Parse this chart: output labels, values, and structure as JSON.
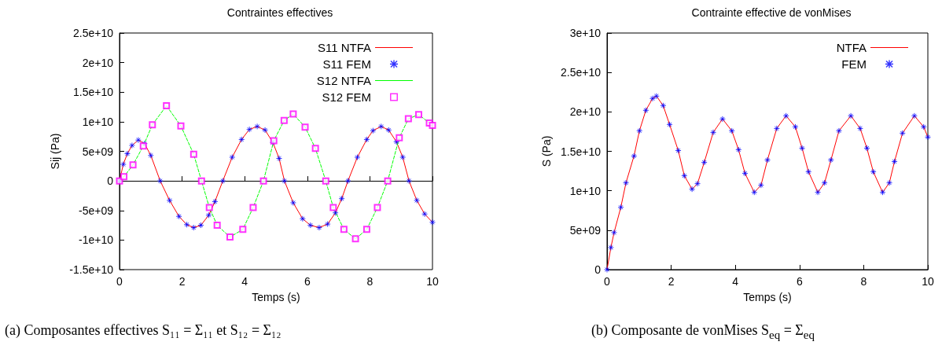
{
  "chart_data": [
    {
      "type": "line",
      "title": "Contraintes effectives",
      "xlabel": "Temps (s)",
      "ylabel": "Sij (Pa)",
      "xlim": [
        0,
        10
      ],
      "xticks": [
        0,
        2,
        4,
        6,
        8,
        10
      ],
      "ylim": [
        -15000000000.0,
        25000000000.0
      ],
      "yticks": [
        {
          "value": -15000000000.0,
          "label": "-1.5e+10"
        },
        {
          "value": -10000000000.0,
          "label": "-1e+10"
        },
        {
          "value": -5000000000.0,
          "label": "-5e+09"
        },
        0,
        {
          "value": 5000000000.0,
          "label": "5e+09"
        },
        {
          "value": 10000000000.0,
          "label": "1e+10"
        },
        {
          "value": 15000000000.0,
          "label": "1.5e+10"
        },
        {
          "value": 20000000000.0,
          "label": "2e+10"
        },
        {
          "value": 25000000000.0,
          "label": "2.5e+10"
        }
      ],
      "legend": "top right",
      "annotations": [
        "(a) Composantes effectives S₁₁ = Σ₁₁ et S₁₂ = Σ₁₂"
      ],
      "series": [
        {
          "name": "S11 NTFA",
          "type": "line",
          "color": "#ff0000",
          "line_style": "solid",
          "x": [
            0,
            0.12,
            0.25,
            0.4,
            0.6,
            0.8,
            1.0,
            1.3,
            1.6,
            1.9,
            2.15,
            2.37,
            2.6,
            2.85,
            3.05,
            3.3,
            3.6,
            3.9,
            4.15,
            4.4,
            4.65,
            4.9,
            5.1,
            5.27,
            5.55,
            5.85,
            6.1,
            6.38,
            6.65,
            6.9,
            7.1,
            7.3,
            7.6,
            7.9,
            8.1,
            8.36,
            8.6,
            8.85,
            9.05,
            9.25,
            9.5,
            9.75,
            10
          ],
          "values": [
            0,
            2800000000.0,
            4600000000.0,
            6000000000.0,
            6900000000.0,
            6300000000.0,
            4300000000.0,
            0,
            -3300000000.0,
            -6000000000.0,
            -7400000000.0,
            -7900000000.0,
            -7500000000.0,
            -5800000000.0,
            -3500000000.0,
            0,
            4000000000.0,
            7000000000.0,
            8700000000.0,
            9200000000.0,
            8600000000.0,
            6500000000.0,
            3800000000.0,
            0,
            -3700000000.0,
            -6400000000.0,
            -7500000000.0,
            -7900000000.0,
            -7300000000.0,
            -5400000000.0,
            -3000000000.0,
            0,
            4000000000.0,
            7000000000.0,
            8500000000.0,
            9200000000.0,
            8600000000.0,
            6600000000.0,
            4000000000.0,
            0,
            -3300000000.0,
            -5600000000.0,
            -7000000000.0
          ]
        },
        {
          "name": "S11 FEM",
          "type": "scatter",
          "color": "#0000ff",
          "marker": "cross",
          "x": [
            0,
            0.12,
            0.25,
            0.4,
            0.6,
            0.8,
            1.0,
            1.3,
            1.6,
            1.9,
            2.15,
            2.37,
            2.6,
            2.85,
            3.05,
            3.3,
            3.6,
            3.9,
            4.15,
            4.4,
            4.65,
            4.9,
            5.1,
            5.27,
            5.55,
            5.85,
            6.1,
            6.38,
            6.65,
            6.9,
            7.1,
            7.3,
            7.6,
            7.9,
            8.1,
            8.36,
            8.6,
            8.85,
            9.05,
            9.25,
            9.5,
            9.75,
            10
          ],
          "values": [
            0,
            2800000000.0,
            4600000000.0,
            6000000000.0,
            6900000000.0,
            6300000000.0,
            4300000000.0,
            0,
            -3300000000.0,
            -6000000000.0,
            -7400000000.0,
            -7900000000.0,
            -7500000000.0,
            -5800000000.0,
            -3500000000.0,
            0,
            4000000000.0,
            7000000000.0,
            8700000000.0,
            9200000000.0,
            8600000000.0,
            6500000000.0,
            3800000000.0,
            0,
            -3700000000.0,
            -6400000000.0,
            -7500000000.0,
            -7900000000.0,
            -7300000000.0,
            -5400000000.0,
            -3000000000.0,
            0,
            4000000000.0,
            7000000000.0,
            8500000000.0,
            9200000000.0,
            8600000000.0,
            6600000000.0,
            4000000000.0,
            0,
            -3300000000.0,
            -5600000000.0,
            -7000000000.0
          ]
        },
        {
          "name": "S12 NTFA",
          "type": "line",
          "color": "#00ff00",
          "line_style": "dashed",
          "x": [
            0,
            0.14,
            0.43,
            0.76,
            1.05,
            1.5,
            1.96,
            2.37,
            2.62,
            2.87,
            3.12,
            3.53,
            3.94,
            4.27,
            4.6,
            4.93,
            5.26,
            5.55,
            5.93,
            6.26,
            6.59,
            6.83,
            7.17,
            7.54,
            7.9,
            8.24,
            8.57,
            8.94,
            9.23,
            9.56,
            9.9,
            10
          ],
          "values": [
            0,
            700000000.0,
            2700000000.0,
            5900000000.0,
            9500000000.0,
            12700000000.0,
            9300000000.0,
            4500000000.0,
            0,
            -4500000000.0,
            -7500000000.0,
            -9500000000.0,
            -8200000000.0,
            -4500000000.0,
            0,
            6800000000.0,
            10200000000.0,
            11300000000.0,
            9100000000.0,
            5500000000.0,
            0,
            -4500000000.0,
            -8200000000.0,
            -9800000000.0,
            -8200000000.0,
            -4500000000.0,
            0,
            7300000000.0,
            10500000000.0,
            11200000000.0,
            9800000000.0,
            9400000000.0
          ]
        },
        {
          "name": "S12 FEM",
          "type": "scatter",
          "color": "#ff00ff",
          "marker": "square",
          "x": [
            0,
            0.14,
            0.43,
            0.76,
            1.05,
            1.5,
            1.96,
            2.37,
            2.62,
            2.87,
            3.12,
            3.53,
            3.94,
            4.27,
            4.6,
            4.93,
            5.26,
            5.55,
            5.93,
            6.26,
            6.59,
            6.83,
            7.17,
            7.54,
            7.9,
            8.24,
            8.57,
            8.94,
            9.23,
            9.56,
            9.9,
            10
          ],
          "values": [
            0,
            700000000.0,
            2700000000.0,
            5900000000.0,
            9500000000.0,
            12700000000.0,
            9300000000.0,
            4500000000.0,
            0,
            -4500000000.0,
            -7500000000.0,
            -9500000000.0,
            -8200000000.0,
            -4500000000.0,
            0,
            6800000000.0,
            10200000000.0,
            11300000000.0,
            9100000000.0,
            5500000000.0,
            0,
            -4500000000.0,
            -8200000000.0,
            -9800000000.0,
            -8200000000.0,
            -4500000000.0,
            0,
            7300000000.0,
            10500000000.0,
            11200000000.0,
            9800000000.0,
            9400000000.0
          ]
        }
      ]
    },
    {
      "type": "line",
      "title": "Contrainte effective de vonMises",
      "xlabel": "Temps (s)",
      "ylabel": "S (Pa)",
      "xlim": [
        0,
        10
      ],
      "xticks": [
        0,
        2,
        4,
        6,
        8,
        10
      ],
      "ylim": [
        0,
        30000000000.0
      ],
      "yticks": [
        0,
        {
          "value": 5000000000.0,
          "label": "5e+09"
        },
        {
          "value": 10000000000.0,
          "label": "1e+10"
        },
        {
          "value": 15000000000.0,
          "label": "1.5e+10"
        },
        {
          "value": 20000000000.0,
          "label": "2e+10"
        },
        {
          "value": 25000000000.0,
          "label": "2.5e+10"
        },
        {
          "value": 30000000000.0,
          "label": "3e+10"
        }
      ],
      "legend": "top right",
      "annotations": [
        "(b) Composante de vonMises S$_{eq}$ = Σ$_{eq}$"
      ],
      "series": [
        {
          "name": "NTFA",
          "type": "line",
          "color": "#ff0000",
          "line_style": "solid",
          "x": [
            0,
            0.12,
            0.22,
            0.43,
            0.59,
            0.84,
            1.01,
            1.21,
            1.42,
            1.54,
            1.75,
            1.95,
            2.22,
            2.41,
            2.65,
            2.82,
            3.03,
            3.31,
            3.6,
            3.89,
            4.1,
            4.3,
            4.59,
            4.8,
            5.0,
            5.29,
            5.58,
            5.87,
            6.08,
            6.28,
            6.57,
            6.78,
            6.98,
            7.23,
            7.6,
            7.89,
            8.1,
            8.3,
            8.59,
            8.8,
            8.96,
            9.21,
            9.58,
            9.87,
            10
          ],
          "values": [
            0,
            2800000000.0,
            4700000000.0,
            7900000000.0,
            11000000000.0,
            14400000000.0,
            17600000000.0,
            20200000000.0,
            21700000000.0,
            22000000000.0,
            20800000000.0,
            18400000000.0,
            15100000000.0,
            11900000000.0,
            10200000000.0,
            10900000000.0,
            13600000000.0,
            17400000000.0,
            19100000000.0,
            17600000000.0,
            15200000000.0,
            12200000000.0,
            9800000000.0,
            10700000000.0,
            13900000000.0,
            17900000000.0,
            19500000000.0,
            18100000000.0,
            15400000000.0,
            12400000000.0,
            9800000000.0,
            11000000000.0,
            13900000000.0,
            17600000000.0,
            19500000000.0,
            17900000000.0,
            15400000000.0,
            12400000000.0,
            9800000000.0,
            11000000000.0,
            13700000000.0,
            17300000000.0,
            19500000000.0,
            18100000000.0,
            16800000000.0
          ]
        },
        {
          "name": "FEM",
          "type": "scatter",
          "color": "#0000ff",
          "marker": "cross",
          "x": [
            0,
            0.12,
            0.22,
            0.43,
            0.59,
            0.84,
            1.01,
            1.21,
            1.42,
            1.54,
            1.75,
            1.95,
            2.22,
            2.41,
            2.65,
            2.82,
            3.03,
            3.31,
            3.6,
            3.89,
            4.1,
            4.3,
            4.59,
            4.8,
            5.0,
            5.29,
            5.58,
            5.87,
            6.08,
            6.28,
            6.57,
            6.78,
            6.98,
            7.23,
            7.6,
            7.89,
            8.1,
            8.3,
            8.59,
            8.8,
            8.96,
            9.21,
            9.58,
            9.87,
            10
          ],
          "values": [
            0,
            2800000000.0,
            4700000000.0,
            7900000000.0,
            11000000000.0,
            14400000000.0,
            17600000000.0,
            20200000000.0,
            21700000000.0,
            22000000000.0,
            20800000000.0,
            18400000000.0,
            15100000000.0,
            11900000000.0,
            10200000000.0,
            10900000000.0,
            13600000000.0,
            17400000000.0,
            19100000000.0,
            17600000000.0,
            15200000000.0,
            12200000000.0,
            9800000000.0,
            10700000000.0,
            13900000000.0,
            17900000000.0,
            19500000000.0,
            18100000000.0,
            15400000000.0,
            12400000000.0,
            9800000000.0,
            11000000000.0,
            13900000000.0,
            17600000000.0,
            19500000000.0,
            17900000000.0,
            15400000000.0,
            12400000000.0,
            9800000000.0,
            11000000000.0,
            13700000000.0,
            17300000000.0,
            19500000000.0,
            18100000000.0,
            16800000000.0
          ]
        }
      ]
    }
  ]
}
